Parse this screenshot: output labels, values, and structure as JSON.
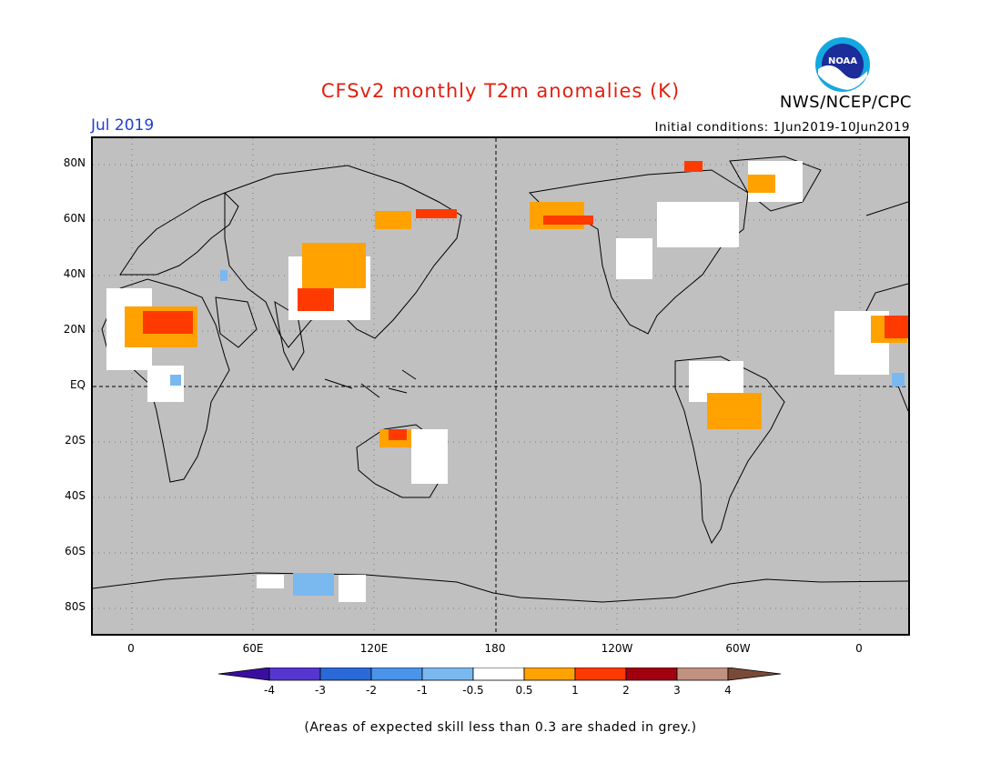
{
  "header": {
    "title": "CFSv2 monthly T2m anomalies (K)",
    "title_color": "#e02010",
    "month": "Jul 2019",
    "initial_conditions": "Initial conditions: 1Jun2019-10Jun2019",
    "org": "NWS/NCEP/CPC",
    "logo_text": "NOAA"
  },
  "map": {
    "lat_labels": [
      "80N",
      "60N",
      "40N",
      "20N",
      "EQ",
      "20S",
      "40S",
      "60S",
      "80S"
    ],
    "lon_labels": [
      "0",
      "60E",
      "120E",
      "180",
      "120W",
      "60W",
      "0"
    ],
    "land_color": "#c0c0c0"
  },
  "colorbar": {
    "labels": [
      "-4",
      "-3",
      "-2",
      "-1",
      "-0.5",
      "0.5",
      "1",
      "2",
      "3",
      "4"
    ],
    "colors": [
      "#3a0fa0",
      "#5537d0",
      "#2a6ad8",
      "#4a94ea",
      "#7ab8f0",
      "#ffffff",
      "#ffa200",
      "#ff3a00",
      "#a10010",
      "#c09080",
      "#7a4a38"
    ]
  },
  "footer": {
    "note": "(Areas of expected skill less than 0.3 are shaded in grey.)"
  }
}
